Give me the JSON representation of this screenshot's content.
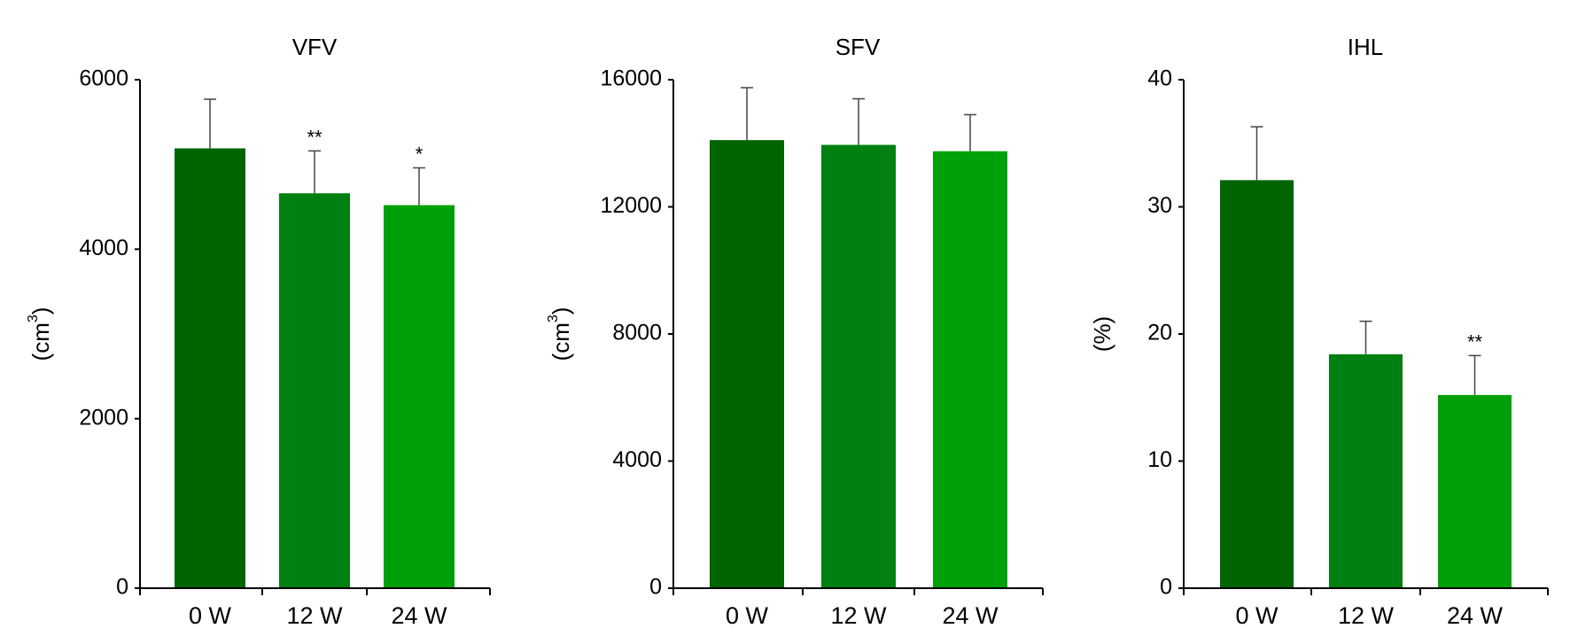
{
  "chart_data": [
    {
      "type": "bar",
      "title": "VFV",
      "ylabel_prefix": "(cm",
      "ylabel_sup": "3",
      "ylabel_suffix": ")",
      "categories": [
        "0 W",
        "12 W",
        "24 W"
      ],
      "values": [
        5190,
        4660,
        4520
      ],
      "errors": [
        580,
        500,
        440
      ],
      "significance": [
        "",
        "**",
        "*"
      ],
      "ylim": [
        0,
        6000
      ],
      "yticks": [
        0,
        2000,
        4000,
        6000
      ],
      "colors": [
        "#006400",
        "#008010",
        "#00a008"
      ]
    },
    {
      "type": "bar",
      "title": "SFV",
      "ylabel_prefix": "(cm",
      "ylabel_sup": "3",
      "ylabel_suffix": ")",
      "categories": [
        "0 W",
        "12 W",
        "24 W"
      ],
      "values": [
        14100,
        13950,
        13750
      ],
      "errors": [
        1650,
        1450,
        1150
      ],
      "significance": [
        "",
        "",
        ""
      ],
      "ylim": [
        0,
        16000
      ],
      "yticks": [
        0,
        4000,
        8000,
        12000,
        16000
      ],
      "colors": [
        "#006400",
        "#008010",
        "#00a008"
      ]
    },
    {
      "type": "bar",
      "title": "IHL",
      "ylabel_prefix": "(%)",
      "ylabel_sup": "",
      "ylabel_suffix": "",
      "categories": [
        "0 W",
        "12 W",
        "24 W"
      ],
      "values": [
        32.1,
        18.4,
        15.2
      ],
      "errors": [
        4.2,
        2.6,
        3.1
      ],
      "significance": [
        "",
        "",
        "**"
      ],
      "ylim": [
        0,
        40
      ],
      "yticks": [
        0,
        10,
        20,
        30,
        40
      ],
      "colors": [
        "#006400",
        "#008010",
        "#00a008"
      ]
    }
  ]
}
